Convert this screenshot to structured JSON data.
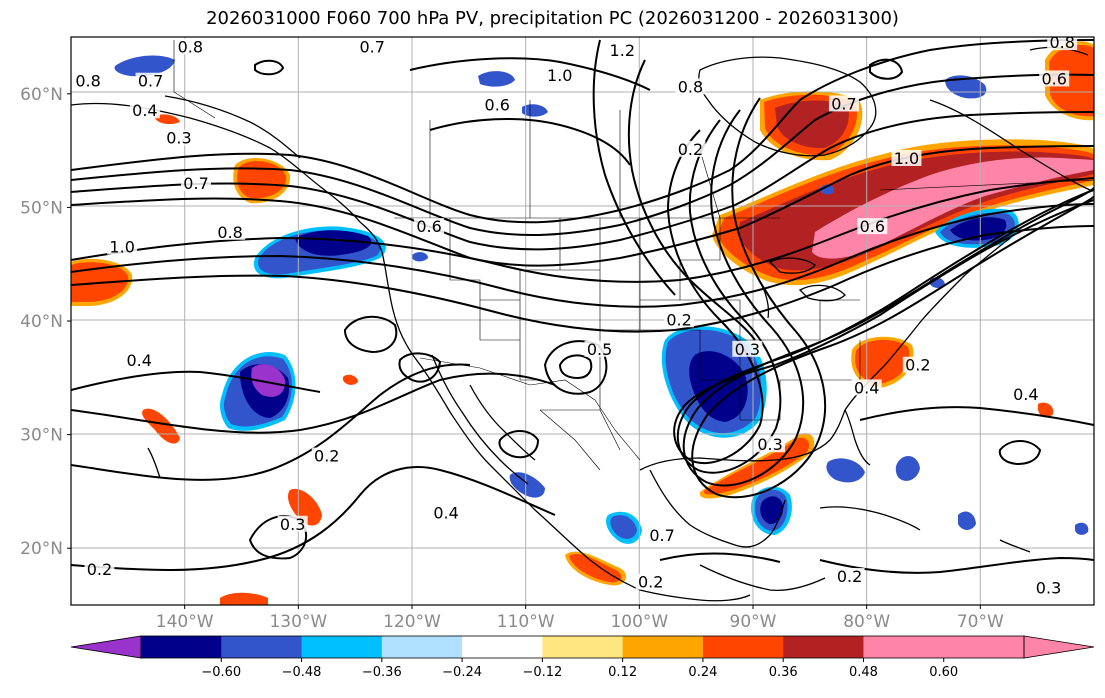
{
  "title": "2026031000 F060 700 hPa PV, precipitation PC (2026031200 - 2026031300)",
  "map": {
    "lon_range": [
      -150,
      -60
    ],
    "lat_range": [
      15,
      65
    ],
    "latitude_labels": [
      {
        "lat": 60,
        "text": "60°N"
      },
      {
        "lat": 50,
        "text": "50°N"
      },
      {
        "lat": 40,
        "text": "40°N"
      },
      {
        "lat": 30,
        "text": "30°N"
      },
      {
        "lat": 20,
        "text": "20°N"
      }
    ],
    "longitude_labels": [
      {
        "lon": -140,
        "text": "140°W"
      },
      {
        "lon": -130,
        "text": "130°W"
      },
      {
        "lon": -120,
        "text": "120°W"
      },
      {
        "lon": -110,
        "text": "110°W"
      },
      {
        "lon": -100,
        "text": "100°W"
      },
      {
        "lon": -90,
        "text": "90°W"
      },
      {
        "lon": -80,
        "text": "80°W"
      },
      {
        "lon": -70,
        "text": "70°W"
      }
    ],
    "contour_labels": [
      {
        "text": "0.8",
        "lon": -139.5,
        "lat": 63.8
      },
      {
        "text": "0.7",
        "lon": -123.5,
        "lat": 63.8
      },
      {
        "text": "1.2",
        "lon": -101.5,
        "lat": 63.5
      },
      {
        "text": "1.0",
        "lon": -107,
        "lat": 61.3
      },
      {
        "text": "0.8",
        "lon": -95.5,
        "lat": 60.3
      },
      {
        "text": "0.6",
        "lon": -112.5,
        "lat": 58.7
      },
      {
        "text": "0.8",
        "lon": -148.5,
        "lat": 60.8
      },
      {
        "text": "0.7",
        "lon": -143,
        "lat": 60.8
      },
      {
        "text": "0.4",
        "lon": -143.5,
        "lat": 58.2
      },
      {
        "text": "0.3",
        "lon": -140.5,
        "lat": 55.8
      },
      {
        "text": "0.7",
        "lon": -139,
        "lat": 51.8
      },
      {
        "text": "0.8",
        "lon": -136,
        "lat": 47.5
      },
      {
        "text": "1.0",
        "lon": -145.5,
        "lat": 46.2
      },
      {
        "text": "0.6",
        "lon": -118.5,
        "lat": 48.0
      },
      {
        "text": "0.4",
        "lon": -144,
        "lat": 36.2
      },
      {
        "text": "0.2",
        "lon": -127.5,
        "lat": 27.8
      },
      {
        "text": "0.4",
        "lon": -117,
        "lat": 22.8
      },
      {
        "text": "0.3",
        "lon": -130.5,
        "lat": 21.8
      },
      {
        "text": "0.2",
        "lon": -147.5,
        "lat": 17.8
      },
      {
        "text": "0.5",
        "lon": -103.5,
        "lat": 37.2
      },
      {
        "text": "0.2",
        "lon": -96.5,
        "lat": 39.8
      },
      {
        "text": "0.3",
        "lon": -90.5,
        "lat": 37.2
      },
      {
        "text": "0.2",
        "lon": -95.5,
        "lat": 54.8
      },
      {
        "text": "0.7",
        "lon": -82,
        "lat": 58.8
      },
      {
        "text": "1.0",
        "lon": -76.5,
        "lat": 54.0
      },
      {
        "text": "0.6",
        "lon": -79.5,
        "lat": 48.0
      },
      {
        "text": "0.4",
        "lon": -80,
        "lat": 33.8
      },
      {
        "text": "0.2",
        "lon": -75.5,
        "lat": 35.8
      },
      {
        "text": "0.4",
        "lon": -66,
        "lat": 33.2
      },
      {
        "text": "0.3",
        "lon": -88.5,
        "lat": 28.8
      },
      {
        "text": "0.7",
        "lon": -98,
        "lat": 20.8
      },
      {
        "text": "0.2",
        "lon": -99,
        "lat": 16.7
      },
      {
        "text": "0.2",
        "lon": -81.5,
        "lat": 17.2
      },
      {
        "text": "0.3",
        "lon": -64,
        "lat": 16.2
      },
      {
        "text": "0.8",
        "lon": -62.8,
        "lat": 64.2
      },
      {
        "text": "0.6",
        "lon": -63.5,
        "lat": 61.0
      }
    ]
  },
  "colorbar": {
    "ticks": [
      "−0.60",
      "−0.48",
      "−0.36",
      "−0.24",
      "−0.12",
      "0.12",
      "0.24",
      "0.36",
      "0.48",
      "0.60"
    ],
    "colors": [
      "#9933cc",
      "#00008b",
      "#3355cc",
      "#00bfff",
      "#b0e0ff",
      "#ffffff",
      "#ffe680",
      "#ffa500",
      "#ff4500",
      "#b22222",
      "#ff85a8",
      "#ff85a8"
    ]
  },
  "legend_colors": {
    "pos_high": "#ff85a8",
    "pos_mid": "#b22222",
    "pos_low": "#ff4500",
    "pos_edge": "#ffa500",
    "neg_core": "#9933cc",
    "neg_high": "#00008b",
    "neg_mid": "#3355cc",
    "neg_low": "#00bfff",
    "neg_edge": "#b0e0ff"
  }
}
